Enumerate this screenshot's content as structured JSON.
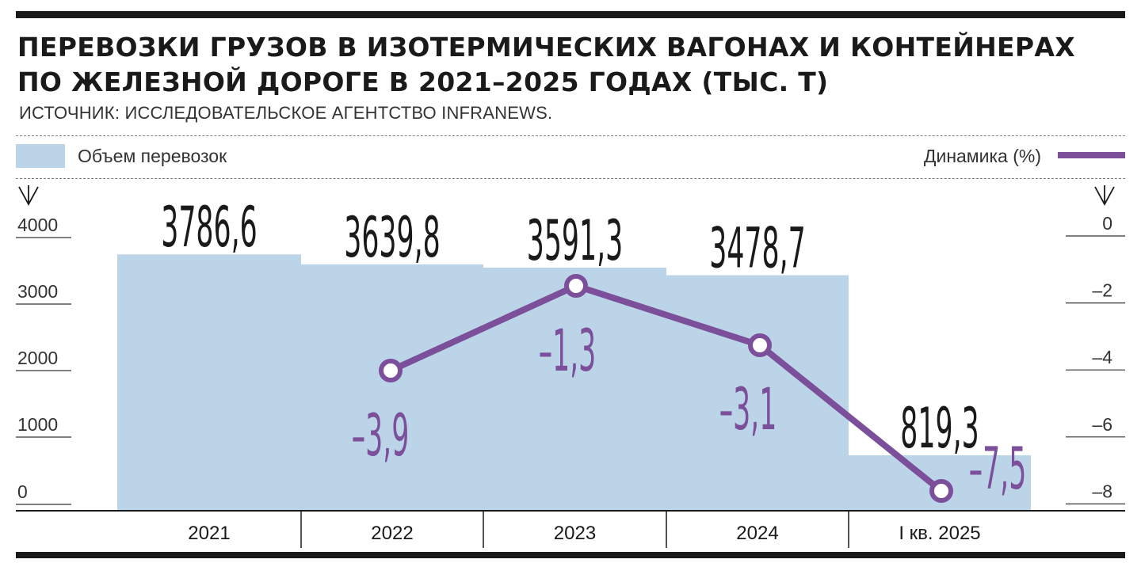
{
  "title_line1": "ПЕРЕВОЗКИ ГРУЗОВ В ИЗОТЕРМИЧЕСКИХ ВАГОНАХ И КОНТЕЙНЕРАХ",
  "title_line2": "ПО ЖЕЛЕЗНОЙ ДОРОГЕ В 2021–2025 ГОДАХ (ТЫС. Т)",
  "source": "ИСТОЧНИК: ИССЛЕДОВАТЕЛЬСКОЕ АГЕНТСТВО INFRANEWS.",
  "colors": {
    "bar": "#bcd4e8",
    "line": "#7b4f9a",
    "text": "#1a1a1a"
  },
  "chart_data": {
    "type": "bar",
    "title": "ПЕРЕВОЗКИ ГРУЗОВ В ИЗОТЕРМИЧЕСКИХ ВАГОНАХ И КОНТЕЙНЕРАХ ПО ЖЕЛЕЗНОЙ ДОРОГЕ В 2021–2025 ГОДАХ (ТЫС. Т)",
    "categories": [
      "2021",
      "2022",
      "2023",
      "2024",
      "I кв. 2025"
    ],
    "series": [
      {
        "name": "Объем перевозок",
        "type": "bar",
        "axis": "left",
        "values": [
          3786.6,
          3639.8,
          3591.3,
          3478.7,
          819.3
        ],
        "labels": [
          "3786,6",
          "3639,8",
          "3591,3",
          "3478,7",
          "819,3"
        ]
      },
      {
        "name": "Динамика (%)",
        "type": "line",
        "axis": "right",
        "values": [
          null,
          -3.9,
          -1.3,
          -3.1,
          -7.5
        ],
        "labels": [
          "",
          "–3,9",
          "–1,3",
          "–3,1",
          "–7,5"
        ]
      }
    ],
    "left_axis": {
      "min": 0,
      "max": 4000,
      "ticks": [
        "4000",
        "3000",
        "2000",
        "1000",
        "0"
      ],
      "tick_values": [
        4000,
        3000,
        2000,
        1000,
        0
      ]
    },
    "right_axis": {
      "min": -8,
      "max": 0,
      "ticks": [
        "0",
        "–2",
        "–4",
        "–6",
        "–8"
      ],
      "tick_values": [
        0,
        -2,
        -4,
        -6,
        -8
      ]
    },
    "legend": {
      "bar_label": "Объем перевозок",
      "line_label": "Динамика (%)",
      "placement": "top"
    }
  }
}
